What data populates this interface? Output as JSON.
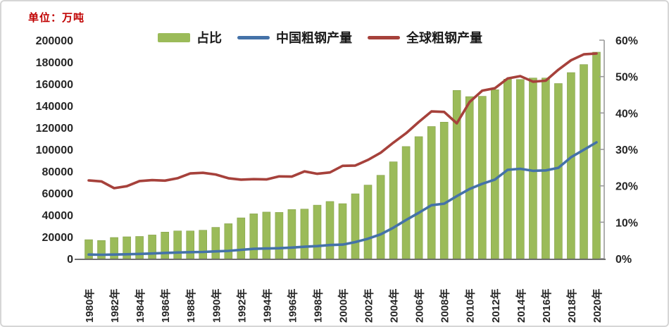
{
  "chart_data": {
    "type": "combo-bar-line",
    "unit_label": "单位：万吨",
    "unit_label_color": "#C00000",
    "grid": false,
    "legend_position": "top-center",
    "years": [
      1980,
      1981,
      1982,
      1983,
      1984,
      1985,
      1986,
      1987,
      1988,
      1989,
      1990,
      1991,
      1992,
      1993,
      1994,
      1995,
      1996,
      1997,
      1998,
      1999,
      2000,
      2001,
      2002,
      2003,
      2004,
      2005,
      2006,
      2007,
      2008,
      2009,
      2010,
      2011,
      2012,
      2013,
      2014,
      2015,
      2016,
      2017,
      2018,
      2019,
      2020
    ],
    "x_tick_labels": [
      "1980年",
      "1982年",
      "1984年",
      "1986年",
      "1988年",
      "1990年",
      "1992年",
      "1994年",
      "1996年",
      "1998年",
      "2000年",
      "2002年",
      "2004年",
      "2006年",
      "2008年",
      "2010年",
      "2012年",
      "2014年",
      "2016年",
      "2018年",
      "2020年"
    ],
    "left_axis": {
      "min": 0,
      "max": 200000,
      "step": 20000,
      "unit": "万吨"
    },
    "right_axis": {
      "min": 0,
      "max": 60,
      "step": 10,
      "suffix": "%"
    },
    "series": [
      {
        "name": "占比",
        "type": "bar",
        "axis": "right",
        "color": "#9BBB59",
        "unit": "%",
        "values": [
          5.2,
          5.0,
          5.8,
          6.0,
          6.1,
          6.5,
          7.3,
          7.6,
          7.6,
          7.8,
          8.6,
          9.6,
          11.2,
          12.3,
          12.8,
          12.7,
          13.5,
          13.6,
          14.7,
          15.7,
          15.1,
          17.8,
          20.2,
          22.9,
          26.6,
          30.8,
          33.5,
          36.3,
          37.5,
          46.2,
          44.5,
          44.6,
          46.4,
          49.3,
          49.2,
          49.6,
          49.6,
          48.1,
          51.1,
          53.3,
          56.7
        ]
      },
      {
        "name": "中国粗钢产量",
        "type": "line",
        "axis": "left",
        "color": "#4472A8",
        "unit": "万吨",
        "values": [
          3712,
          3560,
          3716,
          4002,
          4347,
          4679,
          5221,
          5628,
          5943,
          6159,
          6635,
          7100,
          8094,
          8956,
          9261,
          9536,
          10124,
          10894,
          11459,
          12426,
          12850,
          15163,
          18237,
          22234,
          28291,
          35324,
          41915,
          48929,
          50306,
          57218,
          63723,
          68528,
          72388,
          81313,
          82231,
          80383,
          80761,
          83173,
          92826,
          99634,
          106477
        ]
      },
      {
        "name": "全球粗钢产量",
        "type": "line",
        "axis": "left",
        "color": "#A6413B",
        "unit": "万吨",
        "values": [
          71600,
          70700,
          64500,
          66300,
          71000,
          71900,
          71400,
          73600,
          78000,
          78600,
          77000,
          73600,
          72300,
          72800,
          72500,
          75300,
          75100,
          79900,
          77700,
          78900,
          85000,
          85200,
          90400,
          97000,
          106200,
          114800,
          125100,
          134800,
          134300,
          123900,
          143300,
          153800,
          156000,
          164900,
          167100,
          162000,
          162900,
          173000,
          181600,
          187000,
          187800
        ]
      }
    ]
  }
}
